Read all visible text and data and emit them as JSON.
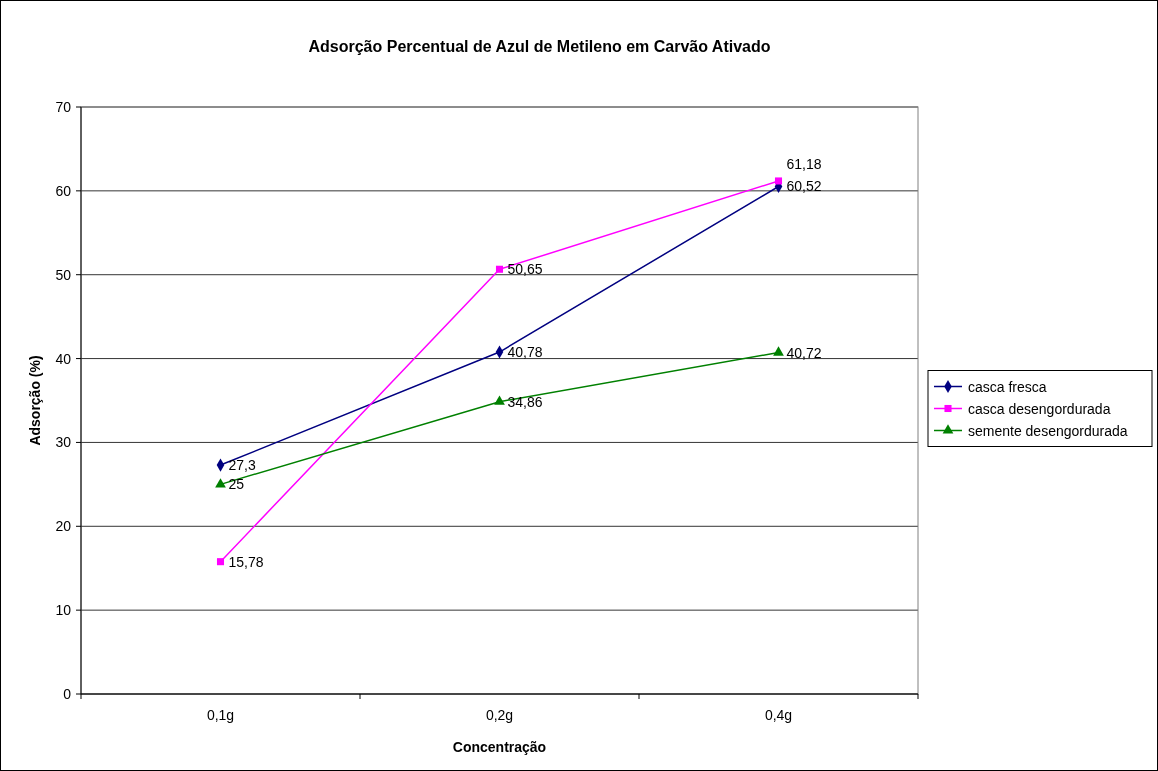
{
  "chart_data": {
    "type": "line",
    "title": "Adsorção Percentual de Azul de Metileno em Carvão Ativado",
    "xlabel": "Concentração",
    "ylabel": "Adsorção (%)",
    "categories": [
      "0,1g",
      "0,2g",
      "0,4g"
    ],
    "series": [
      {
        "name": "casca fresca",
        "color": "#000080",
        "marker": "diamond",
        "values": [
          27.3,
          40.78,
          60.52
        ],
        "value_labels": [
          "27,3",
          "40,78",
          "60,52"
        ]
      },
      {
        "name": "casca desengordurada",
        "color": "#ff00ff",
        "marker": "square",
        "values": [
          15.78,
          50.65,
          61.18
        ],
        "value_labels": [
          "15,78",
          "50,65",
          "61,18"
        ]
      },
      {
        "name": "semente desengordurada",
        "color": "#008000",
        "marker": "triangle",
        "values": [
          25,
          34.86,
          40.72
        ],
        "value_labels": [
          "25",
          "34,86",
          "40,72"
        ]
      }
    ],
    "ylim": [
      0,
      70
    ],
    "yticks": [
      0,
      10,
      20,
      30,
      40,
      50,
      60,
      70
    ],
    "grid": "y",
    "legend": "right"
  }
}
